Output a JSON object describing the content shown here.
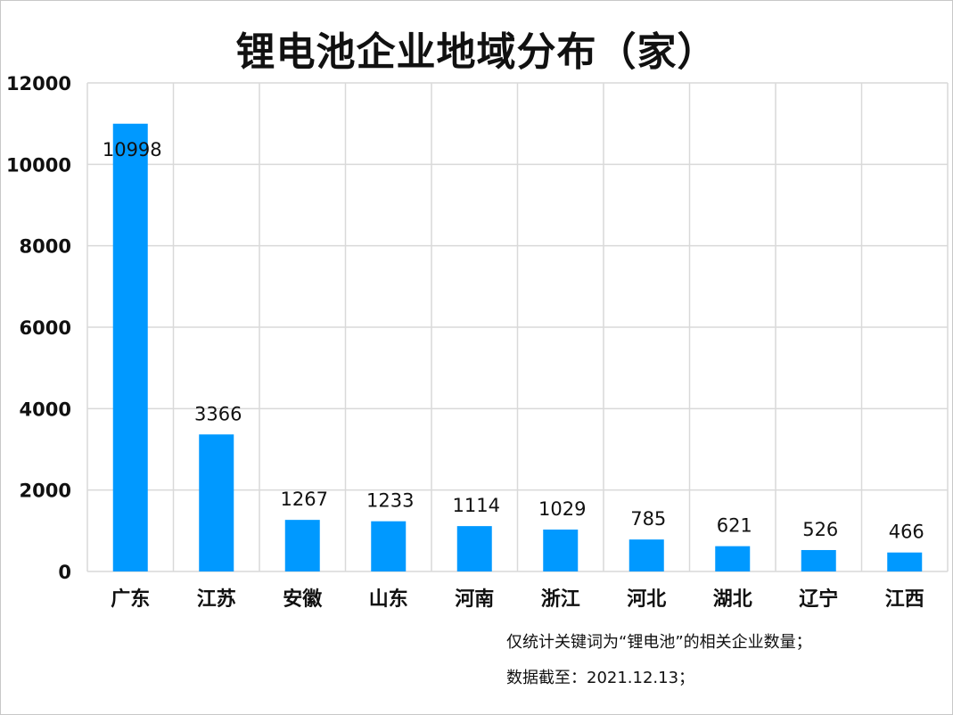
{
  "chart_data": {
    "type": "bar",
    "title": "锂电池企业地域分布（家）",
    "categories": [
      "广东",
      "江苏",
      "安徽",
      "山东",
      "河南",
      "浙江",
      "河北",
      "湖北",
      "辽宁",
      "江西"
    ],
    "values": [
      10998,
      3366,
      1267,
      1233,
      1114,
      1029,
      785,
      621,
      526,
      466
    ],
    "ylim": [
      0,
      12000
    ],
    "yticks": [
      0,
      2000,
      4000,
      6000,
      8000,
      10000,
      12000
    ],
    "grid": true,
    "bar_color": "#0099ff",
    "notes": [
      "仅统计关键词为“锂电池”的相关企业数量；",
      "数据截至：2021.12.13；"
    ]
  }
}
